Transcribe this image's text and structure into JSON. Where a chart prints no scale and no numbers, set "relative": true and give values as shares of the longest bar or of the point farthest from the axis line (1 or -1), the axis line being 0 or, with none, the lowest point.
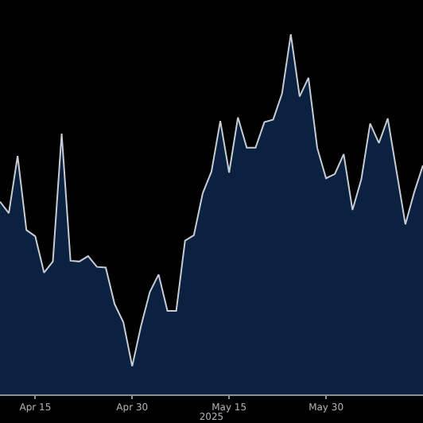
{
  "chart_data": {
    "type": "area",
    "relative": true,
    "xlabel": "2025",
    "categories": [
      null,
      null,
      null,
      null,
      "Apr 15",
      null,
      null,
      null,
      null,
      null,
      null,
      null,
      null,
      null,
      null,
      "Apr 30",
      null,
      null,
      null,
      null,
      null,
      null,
      null,
      null,
      null,
      null,
      "May 15",
      null,
      null,
      null,
      null,
      null,
      null,
      null,
      null,
      null,
      null,
      "May 30",
      null,
      null,
      null,
      null,
      null,
      null,
      null,
      null,
      null,
      null,
      null
    ],
    "series": [
      {
        "color": "#0b2140",
        "values": [
          0.535,
          0.503,
          0.662,
          0.456,
          0.439,
          0.338,
          0.369,
          0.724,
          0.371,
          0.369,
          0.384,
          0.354,
          0.352,
          0.251,
          0.2,
          0.078,
          0.19,
          0.284,
          0.333,
          0.232,
          0.232,
          0.427,
          0.442,
          0.558,
          0.619,
          0.759,
          0.616,
          0.769,
          0.685,
          0.685,
          0.756,
          0.763,
          0.835,
          1.0,
          0.827,
          0.879,
          0.684,
          0.6,
          0.612,
          0.667,
          0.512,
          0.597,
          0.752,
          0.698,
          0.766,
          0.619,
          0.472,
          0.561,
          0.636
        ]
      }
    ],
    "grid": false,
    "legend": false
  }
}
